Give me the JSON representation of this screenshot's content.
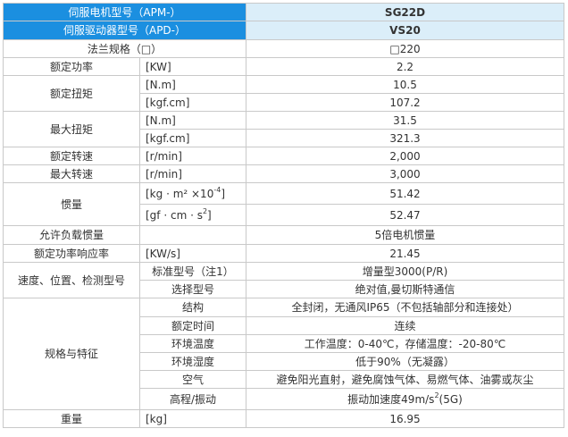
{
  "header": {
    "motor_label": "伺服电机型号（APM-）",
    "motor_value": "SG22D",
    "drive_label": "伺服驱动器型号（APD-）",
    "drive_value": "VS20"
  },
  "rows": {
    "flange": {
      "label": "法兰规格（□）",
      "value": "□220"
    },
    "rated_power": {
      "label": "额定功率",
      "unit": "[KW]",
      "value": "2.2"
    },
    "rated_torque": {
      "label": "额定扭矩",
      "unit1": "[N.m]",
      "value1": "10.5",
      "unit2": "[kgf.cm]",
      "value2": "107.2"
    },
    "max_torque": {
      "label": "最大扭矩",
      "unit1": "[N.m]",
      "value1": "31.5",
      "unit2": "[kgf.cm]",
      "value2": "321.3"
    },
    "rated_speed": {
      "label": "额定转速",
      "unit": "[r/min]",
      "value": "2,000"
    },
    "max_speed": {
      "label": "最大转速",
      "unit": "[r/min]",
      "value": "3,000"
    },
    "inertia": {
      "label": "惯量",
      "unit1_base": "[kg · m² ×10",
      "unit1_sup": "-4",
      "unit1_end": "]",
      "value1": "51.42",
      "unit2_base": "[gf · cm · s",
      "unit2_sup": "2",
      "unit2_end": "]",
      "value2": "52.47"
    },
    "load_inertia": {
      "label": "允许负载惯量",
      "value": "5倍电机惯量"
    },
    "power_rate": {
      "label": "额定功率响应率",
      "unit": "[KW/s]",
      "value": "21.45"
    },
    "encoder": {
      "label": "速度、位置、检测型号",
      "std_label": "标准型号（注1）",
      "std_value": "增量型3000(P/R)",
      "opt_label": "选择型号",
      "opt_value": "绝对值,曼切斯特通信"
    },
    "specs": {
      "label": "规格与特征",
      "items": [
        {
          "label": "结构",
          "value": "全封闭，无通风IP65（不包括轴部分和连接处）"
        },
        {
          "label": "额定时间",
          "value": "连续"
        },
        {
          "label": "环境温度",
          "value": "工作温度：0-40℃，存储温度：-20-80℃"
        },
        {
          "label": "环境湿度",
          "value": "低于90%（无凝露）"
        },
        {
          "label": "空气",
          "value": "避免阳光直射，避免腐蚀气体、易燃气体、油雾或灰尘"
        }
      ],
      "vib_label": "高程/振动",
      "vib_base": "振动加速度49m/s",
      "vib_sup": "2",
      "vib_end": "(5G)"
    },
    "weight": {
      "label": "重量",
      "unit": "[kg]",
      "value": "16.95"
    }
  }
}
